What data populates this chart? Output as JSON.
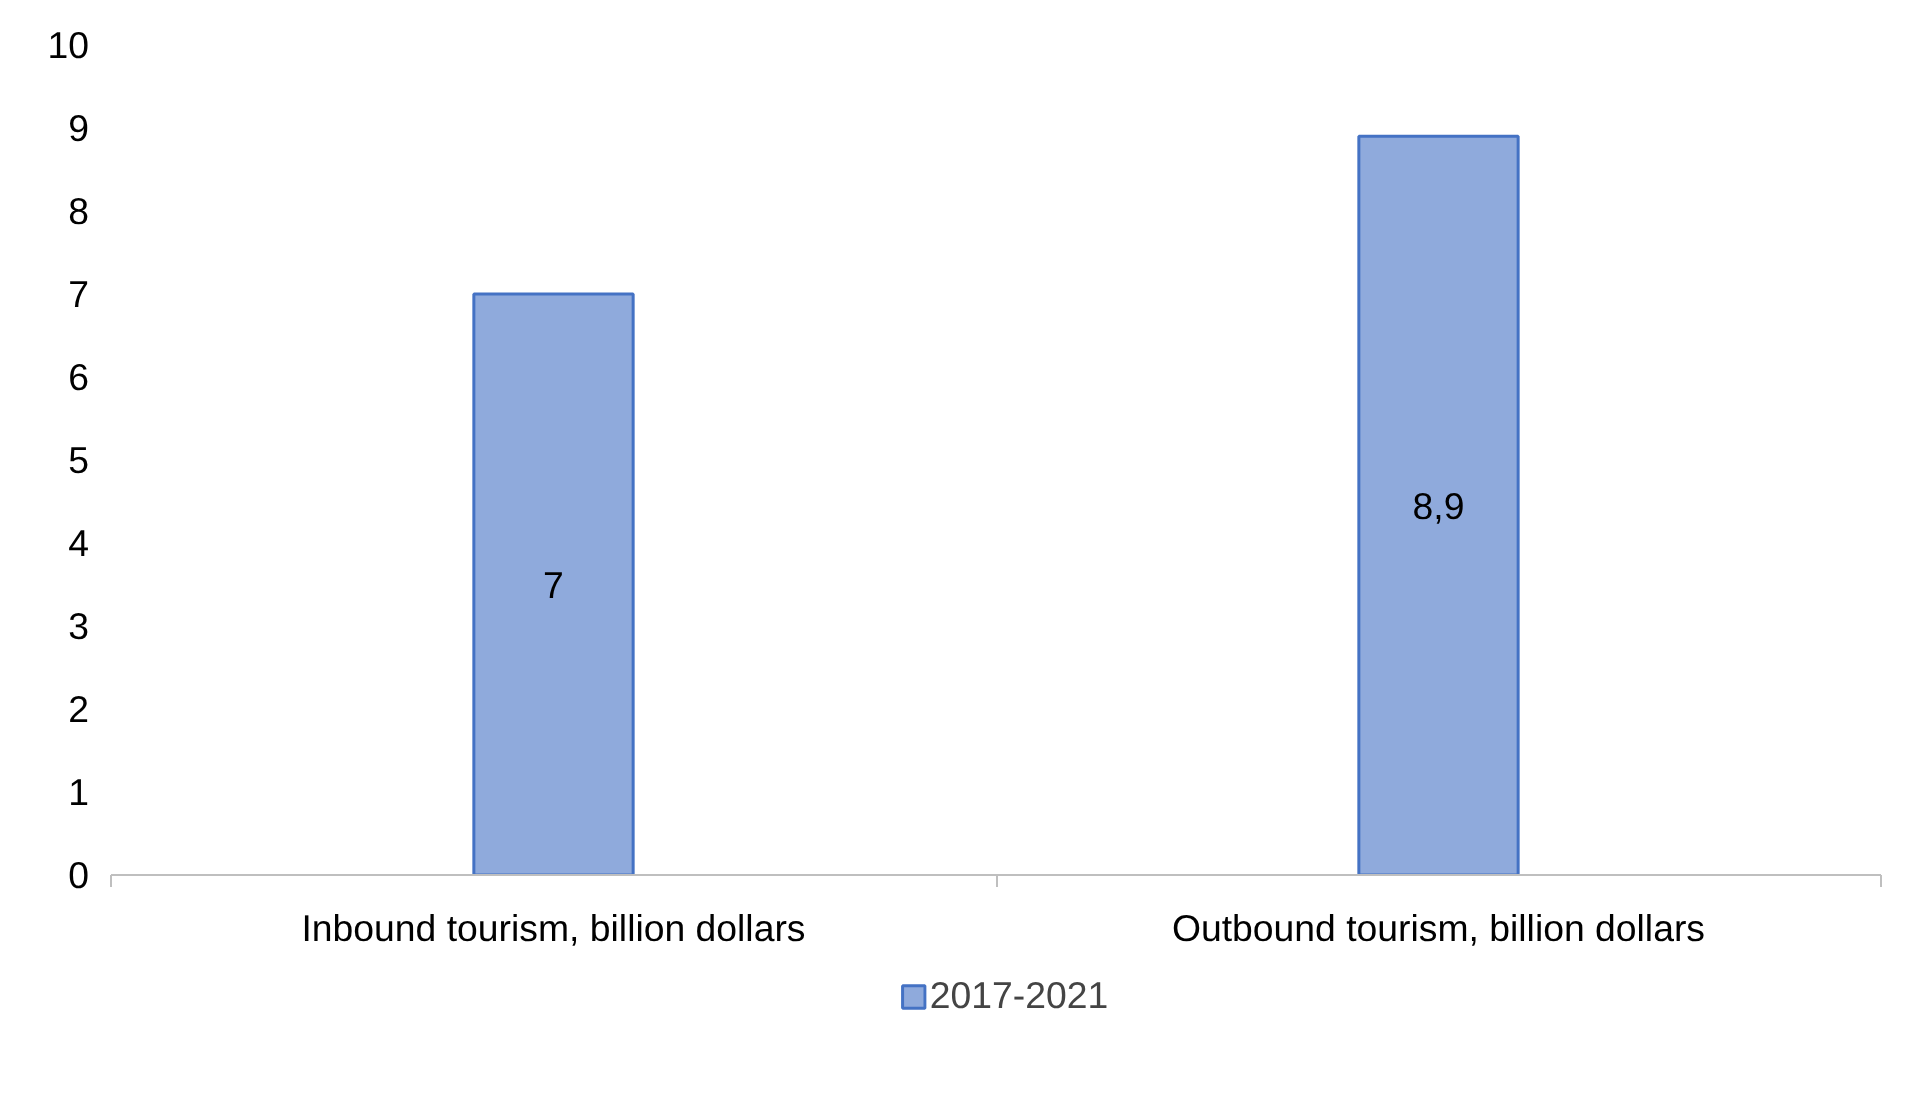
{
  "chart_data": {
    "type": "bar",
    "categories": [
      "Inbound tourism, billion dollars",
      "Outbound tourism, billion dollars"
    ],
    "series": [
      {
        "name": "2017-2021",
        "color": "#8faadc",
        "values": [
          7,
          8.9
        ]
      }
    ],
    "value_labels": [
      "7",
      "8,9"
    ],
    "ylim": [
      0,
      10
    ],
    "yticks": [
      0,
      1,
      2,
      3,
      4,
      5,
      6,
      7,
      8,
      9,
      10
    ],
    "grid": false,
    "legend": "bottom"
  }
}
